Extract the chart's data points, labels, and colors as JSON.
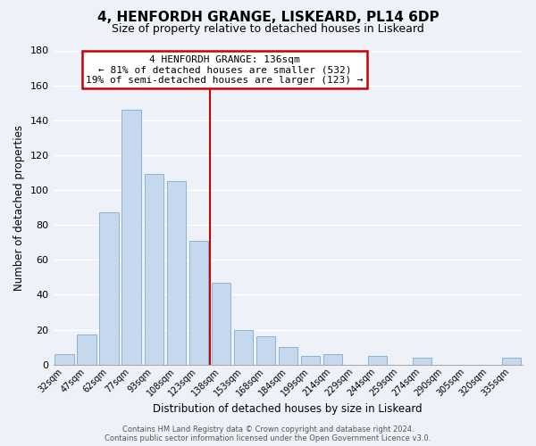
{
  "title": "4, HENFORDH GRANGE, LISKEARD, PL14 6DP",
  "subtitle": "Size of property relative to detached houses in Liskeard",
  "xlabel": "Distribution of detached houses by size in Liskeard",
  "ylabel": "Number of detached properties",
  "bar_labels": [
    "32sqm",
    "47sqm",
    "62sqm",
    "77sqm",
    "93sqm",
    "108sqm",
    "123sqm",
    "138sqm",
    "153sqm",
    "168sqm",
    "184sqm",
    "199sqm",
    "214sqm",
    "229sqm",
    "244sqm",
    "259sqm",
    "274sqm",
    "290sqm",
    "305sqm",
    "320sqm",
    "335sqm"
  ],
  "bar_heights": [
    6,
    17,
    87,
    146,
    109,
    105,
    71,
    47,
    20,
    16,
    10,
    5,
    6,
    0,
    5,
    0,
    4,
    0,
    0,
    0,
    4
  ],
  "bar_color": "#c5d8ee",
  "bar_edge_color": "#8ab4d4",
  "highlight_line_index": 7,
  "ylim": [
    0,
    180
  ],
  "yticks": [
    0,
    20,
    40,
    60,
    80,
    100,
    120,
    140,
    160,
    180
  ],
  "annotation_title": "4 HENFORDH GRANGE: 136sqm",
  "annotation_line1": "← 81% of detached houses are smaller (532)",
  "annotation_line2": "19% of semi-detached houses are larger (123) →",
  "annotation_box_color": "#ffffff",
  "annotation_box_edge": "#cc0000",
  "red_line_color": "#cc0000",
  "footer_line1": "Contains HM Land Registry data © Crown copyright and database right 2024.",
  "footer_line2": "Contains public sector information licensed under the Open Government Licence v3.0.",
  "bg_color": "#eef2f8",
  "plot_bg_color": "#eef2f8",
  "grid_color": "#ffffff",
  "title_fontsize": 11,
  "subtitle_fontsize": 9,
  "axis_label_fontsize": 8,
  "tick_fontsize": 7,
  "annotation_fontsize": 8,
  "footer_fontsize": 6
}
